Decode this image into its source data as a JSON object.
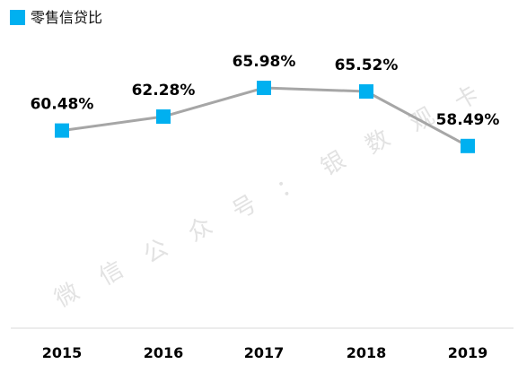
{
  "chart_data": {
    "type": "line",
    "categories": [
      "2015",
      "2016",
      "2017",
      "2018",
      "2019"
    ],
    "series": [
      {
        "name": "零售信贷比",
        "values": [
          60.48,
          62.28,
          65.98,
          65.52,
          58.49
        ],
        "labels": [
          "60.48%",
          "62.28%",
          "65.98%",
          "65.52%",
          "58.49%"
        ],
        "line_color": "#a6a6a6",
        "marker_color": "#00b0f0",
        "marker": "square"
      }
    ],
    "title": "",
    "xlabel": "",
    "ylabel": "",
    "ylim": [
      35,
      75
    ],
    "grid": false,
    "legend_position": "top-left"
  },
  "watermark": {
    "text": "微信公众号：银数观卡",
    "color": "#cfcfcf"
  }
}
